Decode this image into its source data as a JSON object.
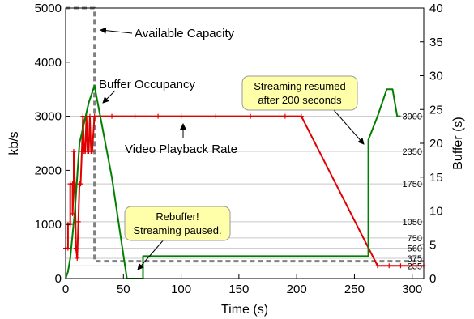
{
  "chart_data": {
    "type": "line",
    "xlabel": "Time (s)",
    "ylabel": "kb/s",
    "y2label": "Buffer (s)",
    "xlim": [
      0,
      310
    ],
    "ylim": [
      0,
      5000
    ],
    "y2lim": [
      0,
      40
    ],
    "x_ticks": [
      "0",
      "50",
      "100",
      "150",
      "200",
      "250",
      "300"
    ],
    "y_ticks": [
      "0",
      "1000",
      "2000",
      "3000",
      "4000",
      "5000"
    ],
    "y2_ticks": [
      "0",
      "5",
      "10",
      "15",
      "20",
      "25",
      "30",
      "35",
      "40"
    ],
    "bitrate_levels": [
      {
        "value": 235,
        "label": "235"
      },
      {
        "value": 375,
        "label": "375"
      },
      {
        "value": 560,
        "label": "560"
      },
      {
        "value": 750,
        "label": "750"
      },
      {
        "value": 1050,
        "label": "1050"
      },
      {
        "value": 1750,
        "label": "1750"
      },
      {
        "value": 2350,
        "label": "2350"
      },
      {
        "value": 3000,
        "label": "3000"
      }
    ],
    "series": [
      {
        "name": "Available Capacity",
        "color": "#808080",
        "style": "dashed",
        "axis": "left",
        "points": [
          [
            0,
            5000
          ],
          [
            25,
            5000
          ],
          [
            25,
            320
          ],
          [
            310,
            320
          ]
        ]
      },
      {
        "name": "Video Playback Rate",
        "color": "#e00000",
        "style": "solid",
        "axis": "left",
        "markers": true,
        "points": [
          [
            0,
            560
          ],
          [
            2,
            560
          ],
          [
            2,
            1000
          ],
          [
            4,
            1000
          ],
          [
            4,
            1750
          ],
          [
            6,
            1750
          ],
          [
            6,
            1200
          ],
          [
            7,
            1750
          ],
          [
            7,
            2350
          ],
          [
            8,
            1750
          ],
          [
            9,
            560
          ],
          [
            10,
            375
          ],
          [
            11,
            1050
          ],
          [
            12,
            1750
          ],
          [
            13,
            1750
          ],
          [
            14,
            2350
          ],
          [
            15,
            3000
          ],
          [
            16,
            2350
          ],
          [
            17,
            2350
          ],
          [
            18,
            3000
          ],
          [
            19,
            2350
          ],
          [
            20,
            2350
          ],
          [
            21,
            3000
          ],
          [
            22,
            2350
          ],
          [
            23,
            2350
          ],
          [
            25,
            3000
          ],
          [
            40,
            3000
          ],
          [
            60,
            3000
          ],
          [
            80,
            3000
          ],
          [
            100,
            3000
          ],
          [
            130,
            3000
          ],
          [
            160,
            3000
          ],
          [
            190,
            3000
          ],
          [
            204,
            3000
          ],
          [
            270,
            235
          ],
          [
            280,
            235
          ],
          [
            290,
            235
          ],
          [
            300,
            235
          ],
          [
            310,
            235
          ]
        ]
      },
      {
        "name": "Buffer Occupancy",
        "color": "#008000",
        "style": "solid",
        "axis": "right",
        "points": [
          [
            0,
            0
          ],
          [
            2,
            1
          ],
          [
            4,
            3
          ],
          [
            8,
            10
          ],
          [
            12,
            20
          ],
          [
            16,
            23
          ],
          [
            20,
            26
          ],
          [
            25,
            28.5
          ],
          [
            40,
            15
          ],
          [
            53,
            0
          ],
          [
            67,
            0
          ],
          [
            67,
            3.3
          ],
          [
            262,
            3.3
          ],
          [
            262,
            20.5
          ],
          [
            270,
            24
          ],
          [
            278,
            28
          ],
          [
            283,
            28
          ],
          [
            287,
            24
          ],
          [
            290,
            24
          ]
        ]
      }
    ],
    "annotations": [
      {
        "text": "Available Capacity",
        "x": 29,
        "y": 4600
      },
      {
        "text": "Buffer Occupancy",
        "x": 29,
        "y": 3700
      },
      {
        "text": "Video Playback Rate",
        "x": 52,
        "y": 2750
      }
    ],
    "callouts": [
      {
        "lines": [
          "Streaming resumed",
          "after 200 seconds"
        ]
      },
      {
        "lines": [
          "Rebuffer!",
          "Streaming paused."
        ]
      }
    ]
  }
}
